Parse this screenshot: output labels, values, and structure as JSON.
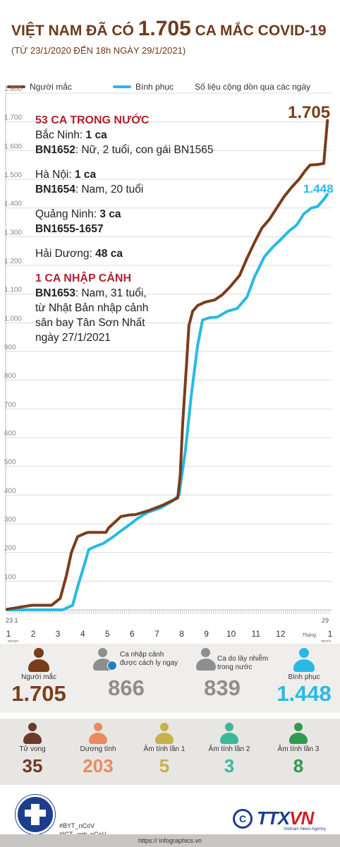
{
  "header": {
    "title_pre": "VIỆT NAM ĐÃ CÓ",
    "title_num": "1.705",
    "title_post": "CA MẮC COVID-19",
    "subtitle": "(TỪ 23/1/2020 ĐẾN 18h NGÀY 29/1/2021)"
  },
  "legend": {
    "infected": "Người mắc",
    "recovered": "Bình phục",
    "note": "Số liệu cộng dồn qua các ngày"
  },
  "colors": {
    "infected": "#7a3d1a",
    "recovered": "#29b9e6",
    "title": "#6e3a1d",
    "red": "#b0232e",
    "deaths": "#6b3a2a",
    "positive": "#e98a5f",
    "neg1": "#c4b24a",
    "neg2": "#3db79a",
    "neg3": "#2f9a52",
    "grey": "#8e8e8e"
  },
  "annotation": {
    "domestic_head": "53 CA TRONG NƯỚC",
    "bn_place": "Bắc Ninh:",
    "bn_count": "1 ca",
    "bn_id": "BN1652",
    "bn_desc": ": Nữ, 2 tuổi, con gái BN1565",
    "hn_place": "Hà Nội:",
    "hn_count": "1 ca",
    "hn_id": "BN1654",
    "hn_desc": ": Nam, 20 tuổi",
    "qn_place": "Quảng Ninh:",
    "qn_count": "3 ca",
    "qn_id": "BN1655-1657",
    "hd_place": "Hải Dương:",
    "hd_count": "48 ca",
    "import_head": "1 CA NHẬP CẢNH",
    "imp_id": "BN1653",
    "imp_desc1": ": Nam, 31 tuổi,",
    "imp_desc2": "từ Nhật Bản nhập cảnh",
    "imp_desc3": "sân bay Tân Sơn Nhất",
    "imp_desc4": "ngày 27/1/2021"
  },
  "stats": {
    "infected_label": "Người mắc",
    "infected_value": "1.705",
    "imported_label1": "Ca nhập cảnh",
    "imported_label2": "được cách ly ngay",
    "imported_value": "866",
    "local_label1": "Ca do lây nhiễm",
    "local_label2": "trong nước",
    "local_value": "839",
    "recovered_label": "Bình phục",
    "recovered_value": "1.448"
  },
  "status": {
    "deaths_label": "Tử vong",
    "deaths_value": "35",
    "positive_label": "Dương tính",
    "positive_value": "203",
    "neg1_label": "Âm tính lần 1",
    "neg1_value": "5",
    "neg2_label": "Âm tính lần 2",
    "neg2_value": "3",
    "neg3_label": "Âm tính lần 3",
    "neg3_value": "8"
  },
  "footer": {
    "tag1": "#BYT_nCoV",
    "tag2": "#ICT_anti_nCoV",
    "url": "https:// infographics.vn",
    "brand": "TTX",
    "brand_vn": "VN",
    "agency": "Vietnam News Agency",
    "copyright": "C"
  },
  "chart_data": {
    "type": "line",
    "title": "VIỆT NAM ĐÃ CÓ 1.705 CA MẮC COVID-19",
    "subtitle": "(TỪ 23/1/2020 ĐẾN 18h NGÀY 29/1/2021)",
    "ylim": [
      0,
      1800
    ],
    "yticks": [
      100,
      200,
      300,
      400,
      500,
      600,
      700,
      800,
      900,
      "1.000",
      "1.100",
      "1.200",
      "1.300",
      "1.400",
      "1.500",
      "1.600",
      "1.700",
      "1.800"
    ],
    "x_start_labels": [
      "23",
      "1"
    ],
    "x_end_label": "29",
    "month_labels": [
      "1",
      "2",
      "3",
      "4",
      "5",
      "6",
      "7",
      "8",
      "9",
      "10",
      "11",
      "12",
      "1"
    ],
    "year_start": "2020",
    "year_end": "2021",
    "month_word": "Tháng",
    "series": [
      {
        "name": "Người mắc",
        "end_label": "1.705",
        "x": [
          0,
          1,
          1.5,
          1.8,
          2.15,
          2.4,
          2.6,
          2.85,
          3.2,
          3.3,
          4.0,
          4.1,
          4.6,
          4.9,
          5.2,
          5.7,
          6.3,
          6.9,
          7.0,
          7.1,
          7.25,
          7.35,
          7.5,
          7.7,
          8.0,
          8.4,
          8.7,
          9.0,
          9.4,
          9.7,
          10.0,
          10.3,
          10.6,
          10.9,
          11.2,
          11.5,
          11.8,
          12.05,
          12.25,
          12.5,
          12.8,
          12.95
        ],
        "y": [
          2,
          16,
          16,
          16,
          40,
          120,
          200,
          255,
          268,
          270,
          270,
          285,
          325,
          330,
          332,
          345,
          365,
          390,
          470,
          650,
          850,
          990,
          1040,
          1060,
          1072,
          1080,
          1098,
          1124,
          1165,
          1225,
          1280,
          1330,
          1360,
          1400,
          1440,
          1472,
          1500,
          1530,
          1550,
          1551,
          1555,
          1705
        ]
      },
      {
        "name": "Bình phục",
        "end_label": "1.448",
        "x": [
          0,
          1.2,
          2.25,
          2.45,
          2.65,
          2.85,
          3.1,
          3.3,
          3.55,
          3.9,
          4.3,
          4.6,
          5.0,
          5.3,
          5.7,
          6.2,
          6.7,
          6.95,
          7.2,
          7.45,
          7.7,
          7.9,
          8.2,
          8.5,
          8.9,
          9.3,
          9.7,
          10.0,
          10.4,
          10.7,
          11.0,
          11.4,
          11.7,
          12.0,
          12.3,
          12.55,
          12.8,
          12.95
        ],
        "y": [
          0,
          0,
          0,
          8,
          16,
          80,
          150,
          210,
          220,
          232,
          255,
          275,
          300,
          320,
          340,
          355,
          380,
          400,
          550,
          750,
          920,
          1010,
          1018,
          1020,
          1040,
          1050,
          1090,
          1160,
          1230,
          1260,
          1285,
          1320,
          1340,
          1380,
          1400,
          1405,
          1430,
          1448
        ]
      }
    ]
  }
}
